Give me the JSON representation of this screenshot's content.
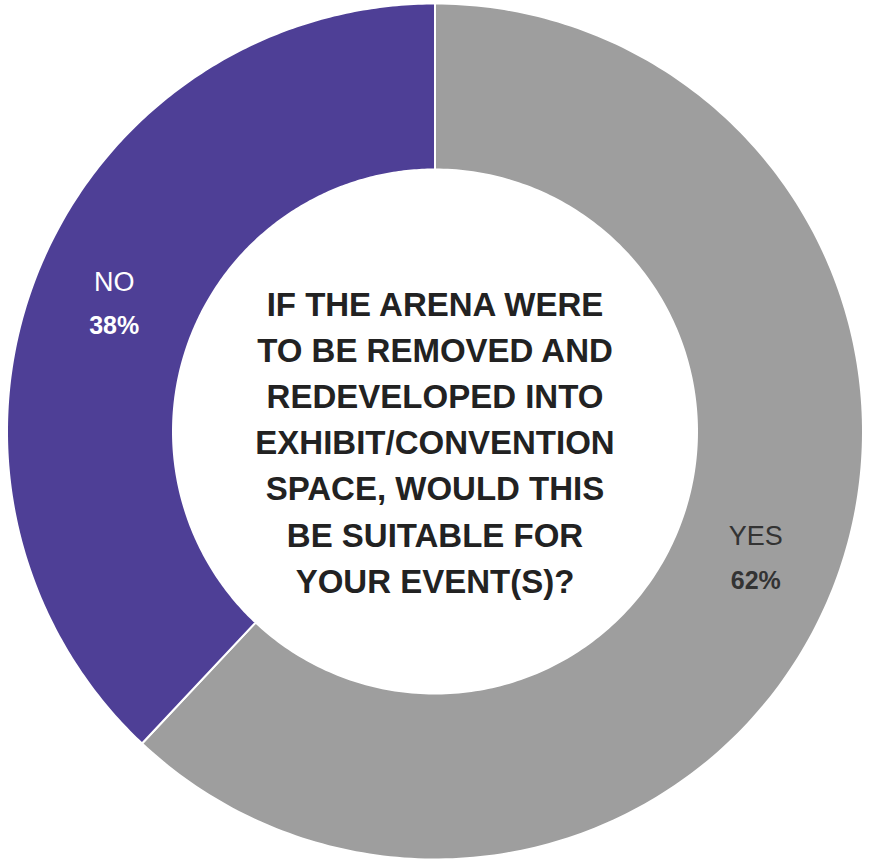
{
  "chart_data": {
    "type": "donut",
    "title": "IF THE ARENA WERE TO BE REMOVED AND REDEVELOPED INTO EXHIBIT/CONVENTION SPACE, WOULD THIS BE SUITABLE FOR YOUR EVENT(S)?",
    "categories": [
      "YES",
      "NO"
    ],
    "values": [
      62,
      38
    ],
    "value_labels": [
      "62%",
      "38%"
    ],
    "colors": [
      "#9e9e9e",
      "#4e3f96"
    ],
    "data_labels": true
  }
}
